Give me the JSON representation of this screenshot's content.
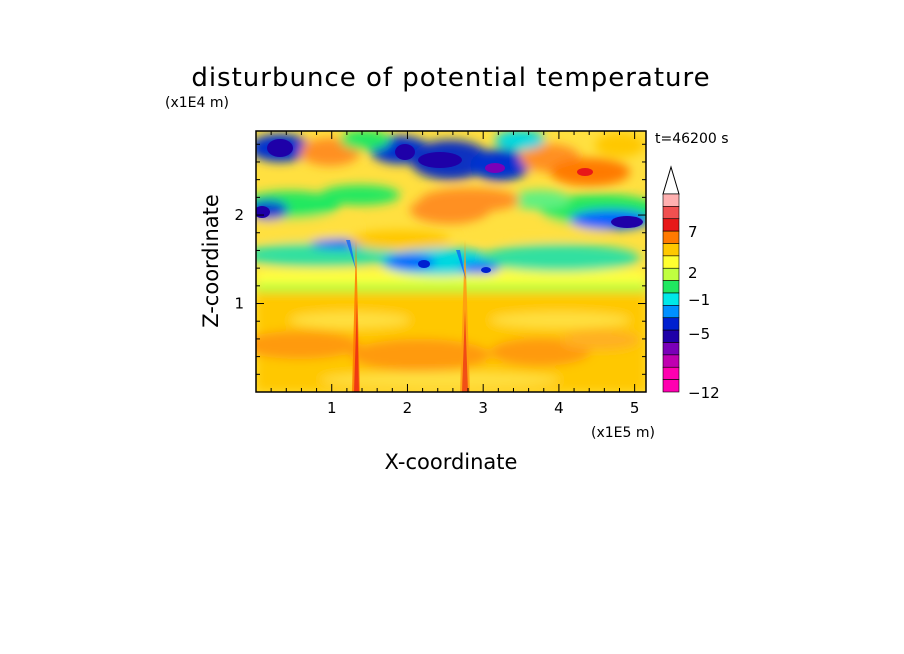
{
  "chart_data": {
    "type": "heatmap",
    "title": "disturbunce of potential temperature",
    "time_label": "t=46200 s",
    "xlabel": "X-coordinate",
    "ylabel": "Z-coordinate",
    "x_unit_label": "(x1E5 m)",
    "y_unit_label": "(x1E4 m)",
    "xlim": [
      0,
      5.15
    ],
    "ylim": [
      0,
      2.95
    ],
    "x_ticks": [
      {
        "value": 1,
        "label": "1"
      },
      {
        "value": 2,
        "label": "2"
      },
      {
        "value": 3,
        "label": "3"
      },
      {
        "value": 4,
        "label": "4"
      },
      {
        "value": 5,
        "label": "5"
      }
    ],
    "y_ticks": [
      {
        "value": 1,
        "label": "1"
      },
      {
        "value": 2,
        "label": "2"
      }
    ],
    "colorbar": {
      "levels": [
        {
          "value": 9,
          "color": "#ff66ff"
        },
        {
          "value": 8,
          "color": "#ffb0b0"
        },
        {
          "value": 7,
          "color": "#f05050"
        },
        {
          "value": 5,
          "color": "#e81818"
        },
        {
          "value": 3,
          "color": "#ff7a00"
        },
        {
          "value": 2,
          "color": "#ffc800"
        },
        {
          "value": 1,
          "color": "#ffff30"
        },
        {
          "value": 0,
          "color": "#c0ff40"
        },
        {
          "value": -1,
          "color": "#20e860"
        },
        {
          "value": -2,
          "color": "#00e8e8"
        },
        {
          "value": -3,
          "color": "#0090ff"
        },
        {
          "value": -5,
          "color": "#0020d0"
        },
        {
          "value": -7,
          "color": "#1e00a8"
        },
        {
          "value": -9,
          "color": "#7a00b8"
        },
        {
          "value": -11,
          "color": "#c000b0"
        },
        {
          "value": -12,
          "color": "#ff00b0"
        }
      ],
      "labels": [
        "7",
        "2",
        "−1",
        "−5",
        "−12"
      ]
    }
  }
}
